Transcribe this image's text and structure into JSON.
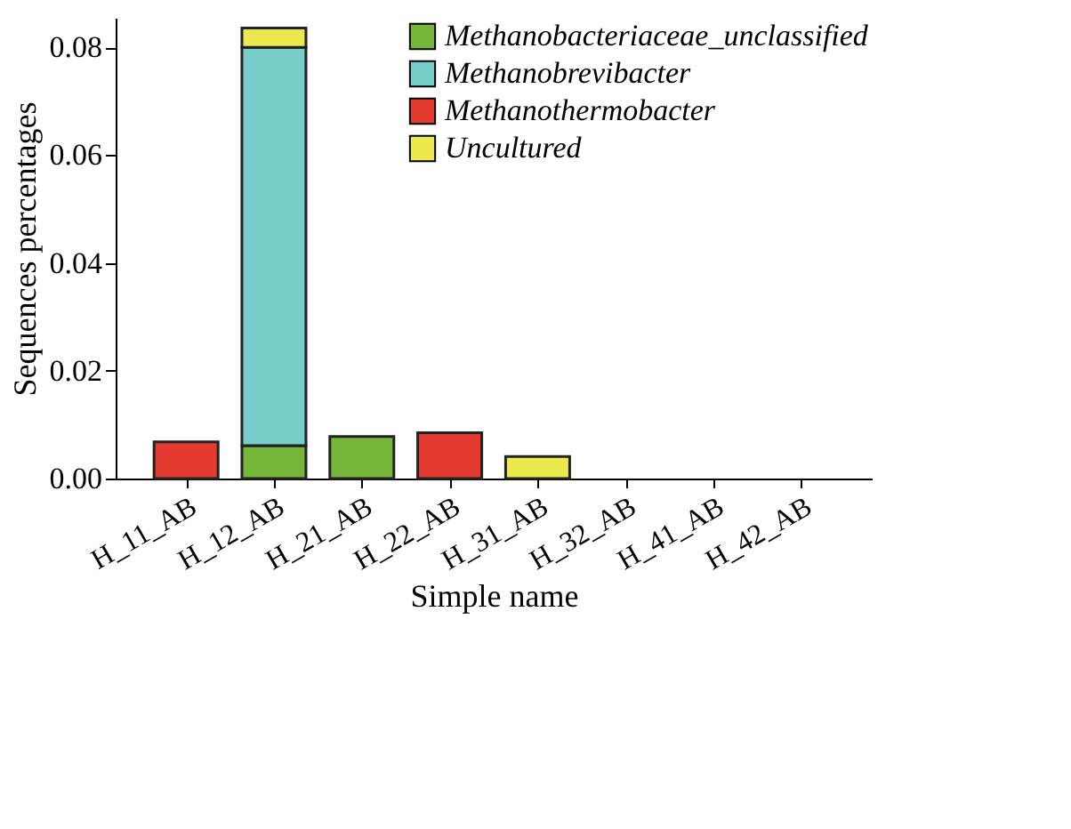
{
  "chart_data": {
    "type": "bar",
    "stacked": true,
    "xlabel": "Simple name",
    "ylabel": "Sequences percentages",
    "categories": [
      "H_11_AB",
      "H_12_AB",
      "H_21_AB",
      "H_22_AB",
      "H_31_AB",
      "H_32_AB",
      "H_41_AB",
      "H_42_AB"
    ],
    "series": [
      {
        "name": "Methanobacteriaceae_unclassified",
        "color": "#76b63a",
        "values": [
          null,
          0.0061,
          0.0078,
          null,
          null,
          null,
          null,
          null
        ]
      },
      {
        "name": "Methanobrevibacter",
        "color": "#76cdca",
        "values": [
          null,
          0.0739,
          null,
          null,
          null,
          null,
          null,
          null
        ]
      },
      {
        "name": "Methanothermobacter",
        "color": "#e53a30",
        "values": [
          0.0068,
          null,
          null,
          0.0085,
          null,
          null,
          null,
          null
        ]
      },
      {
        "name": "Uncultured",
        "color": "#ece94e",
        "values": [
          null,
          0.0036,
          null,
          null,
          0.0041,
          null,
          null,
          null
        ]
      }
    ],
    "ylim": [
      0,
      0.0855
    ],
    "yticks": [
      {
        "value": 0,
        "label": "0.00"
      },
      {
        "value": 0.02,
        "label": "0.02"
      },
      {
        "value": 0.04,
        "label": "0.04"
      },
      {
        "value": 0.06,
        "label": "0.06"
      },
      {
        "value": 0.08,
        "label": "0.08"
      }
    ],
    "grid": false,
    "legend": "top right"
  }
}
